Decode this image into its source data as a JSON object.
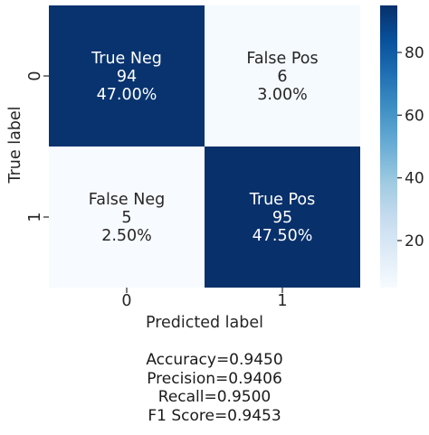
{
  "chart_data": {
    "type": "heatmap",
    "xlabel": "Predicted label",
    "ylabel": "True label",
    "x_tick_labels": [
      "0",
      "1"
    ],
    "y_tick_labels": [
      "0",
      "1"
    ],
    "cells": [
      [
        {
          "name": "True Neg",
          "count": "94",
          "percent": "47.00%",
          "value": 94
        },
        {
          "name": "False Pos",
          "count": "6",
          "percent": "3.00%",
          "value": 6
        }
      ],
      [
        {
          "name": "False Neg",
          "count": "5",
          "percent": "2.50%",
          "value": 5
        },
        {
          "name": "True Pos",
          "count": "95",
          "percent": "47.50%",
          "value": 95
        }
      ]
    ],
    "colorbar": {
      "colormap": "Blues",
      "vmin": 5,
      "vmax": 95,
      "ticks": [
        20,
        40,
        60,
        80
      ],
      "tick_labels": [
        "20",
        "40",
        "60",
        "80"
      ]
    },
    "colors": {
      "high": "#08306b",
      "low": "#f7fbff",
      "text_on_dark": "#ffffff",
      "text_on_light": "#262626"
    }
  },
  "metrics": {
    "accuracy": "Accuracy=0.9450",
    "precision": "Precision=0.9406",
    "recall": "Recall=0.9500",
    "f1": "F1 Score=0.9453"
  }
}
